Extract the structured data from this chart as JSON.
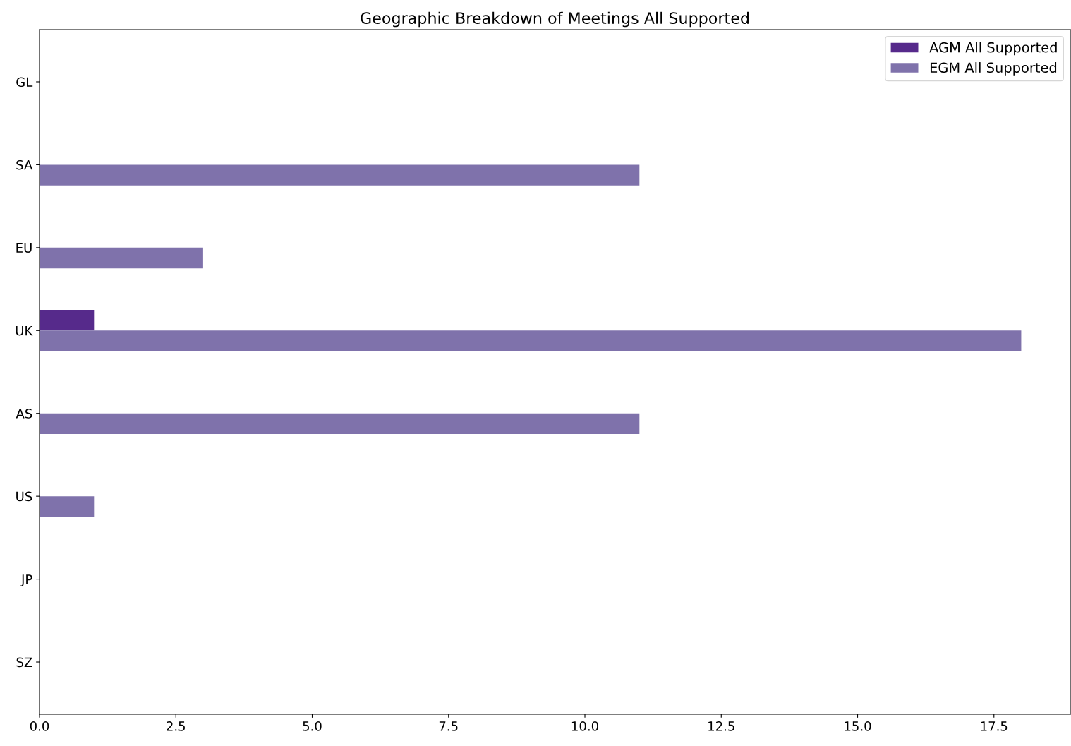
{
  "chart_data": {
    "type": "bar",
    "orientation": "horizontal",
    "title": "Geographic Breakdown of Meetings All Supported",
    "categories": [
      "GL",
      "SA",
      "EU",
      "UK",
      "AS",
      "US",
      "JP",
      "SZ"
    ],
    "series": [
      {
        "name": "AGM All Supported",
        "color": "#562a8b",
        "values": [
          0,
          0,
          0,
          1,
          0,
          0,
          0,
          0
        ]
      },
      {
        "name": "EGM All Supported",
        "color": "#7f72ab",
        "values": [
          0,
          11,
          3,
          18,
          11,
          1,
          0,
          0
        ]
      }
    ],
    "xlim": [
      0,
      18.9
    ],
    "xticks": [
      {
        "value": 0,
        "label": "0.0"
      },
      {
        "value": 2.5,
        "label": "2.5"
      },
      {
        "value": 5,
        "label": "5.0"
      },
      {
        "value": 7.5,
        "label": "7.5"
      },
      {
        "value": 10,
        "label": "10.0"
      },
      {
        "value": 12.5,
        "label": "12.5"
      },
      {
        "value": 15,
        "label": "15.0"
      },
      {
        "value": 17.5,
        "label": "17.5"
      }
    ],
    "legend": "top right",
    "grid": false
  }
}
